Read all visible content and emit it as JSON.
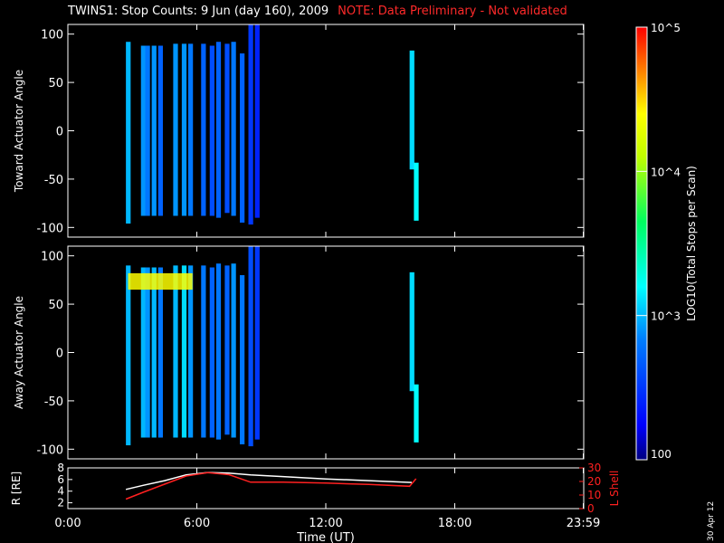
{
  "header": {
    "title": "TWINS1: Stop Counts:  9 Jun (day 160), 2009",
    "note": "NOTE: Data Preliminary - Not validated"
  },
  "datestamp": "30 Apr 12",
  "colors": {
    "background": "#000000",
    "axes": "#ffffff",
    "note": "#ff2a2a",
    "r_line": "#ffffff",
    "lshell_line": "#ff2020"
  },
  "colorbar": {
    "label": "LOG10(Total Stops per Scan)",
    "ticks": [
      "10^5",
      "10^4",
      "10^3",
      "100"
    ],
    "tick_values": [
      5,
      4,
      3,
      2
    ],
    "range": [
      2,
      5
    ],
    "colormap": "rainbow (blue → cyan → green → yellow → red)"
  },
  "chart_data": [
    {
      "type": "heatmap",
      "name": "toward",
      "ylabel": "Toward Actuator Angle",
      "ylim": [
        -110,
        110
      ],
      "yticks": [
        100,
        50,
        0,
        -50,
        -100
      ],
      "xlim": [
        0,
        24
      ],
      "xtick_labels": [
        "0:00",
        "6:00",
        "12:00",
        "18:00",
        "23:59"
      ],
      "xtick_values": [
        0,
        6,
        12,
        18,
        23.98
      ],
      "scan_columns": [
        {
          "t": 2.7,
          "ymin": -96,
          "ymax": 92,
          "log_level": 3.0
        },
        {
          "t": 3.4,
          "ymin": -88,
          "ymax": 88,
          "log_level": 2.9
        },
        {
          "t": 3.6,
          "ymin": -88,
          "ymax": 88,
          "log_level": 2.8
        },
        {
          "t": 3.9,
          "ymin": -88,
          "ymax": 88,
          "log_level": 2.9
        },
        {
          "t": 4.2,
          "ymin": -88,
          "ymax": 88,
          "log_level": 2.7
        },
        {
          "t": 4.9,
          "ymin": -88,
          "ymax": 90,
          "log_level": 2.9
        },
        {
          "t": 5.3,
          "ymin": -88,
          "ymax": 90,
          "log_level": 2.9
        },
        {
          "t": 5.6,
          "ymin": -88,
          "ymax": 90,
          "log_level": 2.8
        },
        {
          "t": 6.2,
          "ymin": -88,
          "ymax": 90,
          "log_level": 2.7
        },
        {
          "t": 6.6,
          "ymin": -88,
          "ymax": 88,
          "log_level": 2.6
        },
        {
          "t": 6.9,
          "ymin": -90,
          "ymax": 92,
          "log_level": 2.7
        },
        {
          "t": 7.3,
          "ymin": -85,
          "ymax": 90,
          "log_level": 2.6
        },
        {
          "t": 7.6,
          "ymin": -88,
          "ymax": 92,
          "log_level": 2.8
        },
        {
          "t": 8.0,
          "ymin": -95,
          "ymax": 80,
          "log_level": 2.7
        },
        {
          "t": 8.4,
          "ymin": -97,
          "ymax": 110,
          "log_level": 2.5
        },
        {
          "t": 8.7,
          "ymin": -90,
          "ymax": 110,
          "log_level": 2.4
        },
        {
          "t": 15.9,
          "ymin": -40,
          "ymax": 83,
          "log_level": 3.1
        },
        {
          "t": 16.1,
          "ymin": -93,
          "ymax": -33,
          "log_level": 3.2
        }
      ]
    },
    {
      "type": "heatmap",
      "name": "away",
      "ylabel": "Away Actuator Angle",
      "ylim": [
        -110,
        110
      ],
      "yticks": [
        100,
        50,
        0,
        -50,
        -100
      ],
      "xlim": [
        0,
        24
      ],
      "xtick_labels": [
        "0:00",
        "6:00",
        "12:00",
        "18:00",
        "23:59"
      ],
      "xtick_values": [
        0,
        6,
        12,
        18,
        23.98
      ],
      "scan_columns": [
        {
          "t": 2.7,
          "ymin": -96,
          "ymax": 90,
          "log_level": 3.0
        },
        {
          "t": 3.4,
          "ymin": -88,
          "ymax": 88,
          "log_level": 3.0
        },
        {
          "t": 3.6,
          "ymin": -88,
          "ymax": 88,
          "log_level": 2.9
        },
        {
          "t": 3.9,
          "ymin": -88,
          "ymax": 88,
          "log_level": 3.0
        },
        {
          "t": 4.2,
          "ymin": -88,
          "ymax": 88,
          "log_level": 2.8
        },
        {
          "t": 4.9,
          "ymin": -88,
          "ymax": 90,
          "log_level": 3.0
        },
        {
          "t": 5.3,
          "ymin": -88,
          "ymax": 90,
          "log_level": 3.1
        },
        {
          "t": 5.6,
          "ymin": -88,
          "ymax": 90,
          "log_level": 2.9
        },
        {
          "t": 6.2,
          "ymin": -88,
          "ymax": 90,
          "log_level": 2.8
        },
        {
          "t": 6.6,
          "ymin": -88,
          "ymax": 88,
          "log_level": 2.7
        },
        {
          "t": 6.9,
          "ymin": -90,
          "ymax": 92,
          "log_level": 2.8
        },
        {
          "t": 7.3,
          "ymin": -85,
          "ymax": 90,
          "log_level": 2.7
        },
        {
          "t": 7.6,
          "ymin": -88,
          "ymax": 92,
          "log_level": 2.9
        },
        {
          "t": 8.0,
          "ymin": -95,
          "ymax": 80,
          "log_level": 2.8
        },
        {
          "t": 8.4,
          "ymin": -97,
          "ymax": 110,
          "log_level": 2.6
        },
        {
          "t": 8.7,
          "ymin": -90,
          "ymax": 110,
          "log_level": 2.5
        },
        {
          "t": 15.9,
          "ymin": -40,
          "ymax": 83,
          "log_level": 3.1
        },
        {
          "t": 16.1,
          "ymin": -93,
          "ymax": -33,
          "log_level": 3.2
        }
      ],
      "hot_band": {
        "ymin": 65,
        "ymax": 82,
        "t_start": 2.8,
        "t_end": 5.8,
        "log_level": 4.4
      }
    },
    {
      "type": "line",
      "name": "orbit",
      "ylabel": "R [RE]",
      "y2label": "L Shell",
      "ylim": [
        1,
        8
      ],
      "yticks": [
        2,
        4,
        6,
        8
      ],
      "y2lim": [
        0,
        30
      ],
      "y2ticks": [
        0,
        10,
        20,
        30
      ],
      "xlabel": "Time (UT)",
      "xlim": [
        0,
        24
      ],
      "xtick_labels": [
        "0:00",
        "6:00",
        "12:00",
        "18:00",
        "23:59"
      ],
      "xtick_values": [
        0,
        6,
        12,
        18,
        23.98
      ],
      "series": [
        {
          "name": "R [RE]",
          "axis": "left",
          "x": [
            2.7,
            3.5,
            4.5,
            5.5,
            6.5,
            7.5,
            8.5,
            10,
            12,
            14,
            16
          ],
          "y": [
            4.3,
            5.0,
            5.8,
            6.8,
            7.2,
            7.1,
            6.8,
            6.5,
            6.1,
            5.8,
            5.5
          ]
        },
        {
          "name": "L Shell",
          "axis": "right",
          "x": [
            2.7,
            3.5,
            4.5,
            5.5,
            6.5,
            7.5,
            8.5,
            10,
            12,
            14,
            15.9,
            16.2
          ],
          "y": [
            7,
            12,
            18,
            24,
            26.5,
            25,
            19.5,
            19.5,
            18.8,
            17.8,
            16.5,
            22
          ]
        }
      ]
    }
  ]
}
